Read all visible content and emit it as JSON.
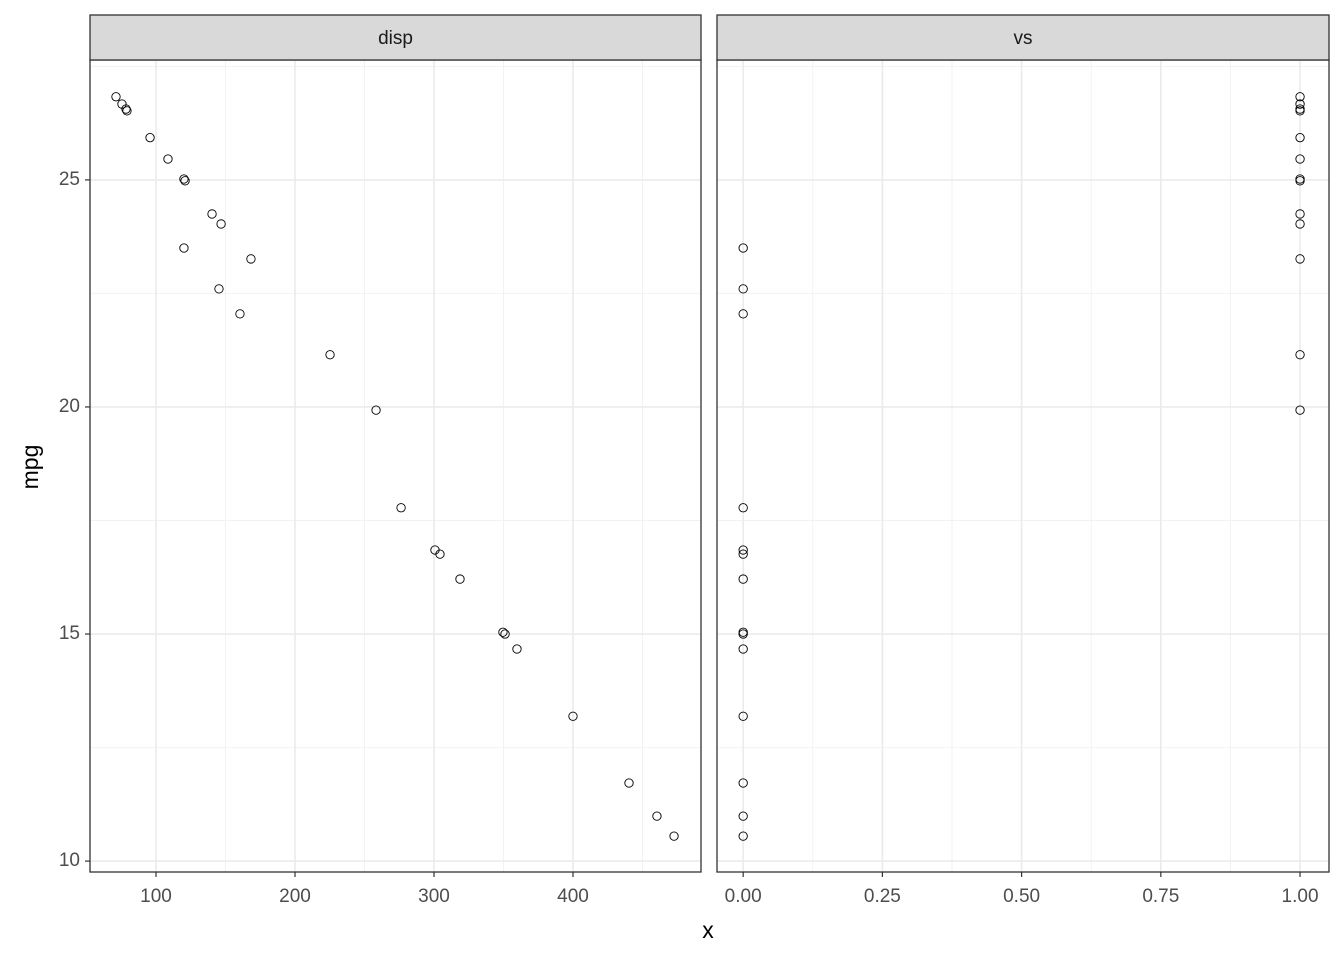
{
  "chart_data": {
    "type": "scatter",
    "x_label": "x",
    "y_label": "mpg",
    "y": [
      26.83,
      26.67,
      26.56,
      26.52,
      25.93,
      25.46,
      25.02,
      24.98,
      24.25,
      24.03,
      23.5,
      23.26,
      22.6,
      22.05,
      21.15,
      19.93,
      17.78,
      16.85,
      16.76,
      16.21,
      15.04,
      15.0,
      14.67,
      13.19,
      11.72,
      10.99,
      10.55
    ],
    "ylim": [
      9.76,
      27.64
    ],
    "yticks": [
      10,
      15,
      20,
      25
    ],
    "grid": true,
    "point_color": "#000000",
    "facets": [
      {
        "title": "disp",
        "x": [
          71.2,
          75.5,
          78.4,
          79.1,
          95.7,
          108.6,
          120.1,
          120.9,
          140.3,
          146.8,
          120.1,
          168.3,
          145.3,
          160.4,
          225.2,
          258.3,
          276.3,
          300.7,
          304.3,
          318.7,
          349.6,
          351.1,
          359.7,
          400,
          440.3,
          460.4,
          472.7
        ],
        "xlim": [
          52.5,
          492.1
        ],
        "xticks": [
          100,
          200,
          300,
          400
        ]
      },
      {
        "title": "vs",
        "x": [
          1,
          1,
          1,
          1,
          1,
          1,
          1,
          1,
          1,
          1,
          0,
          1,
          0,
          0,
          1,
          1,
          0,
          0,
          0,
          0,
          0,
          0,
          0,
          0,
          0,
          0,
          0
        ],
        "xlim": [
          -0.047,
          1.052
        ],
        "xticks": [
          {
            "value": 0,
            "label": "0.00"
          },
          {
            "value": 0.25,
            "label": "0.25"
          },
          {
            "value": 0.5,
            "label": "0.50"
          },
          {
            "value": 0.75,
            "label": "0.75"
          },
          {
            "value": 1,
            "label": "1.00"
          }
        ]
      }
    ]
  }
}
